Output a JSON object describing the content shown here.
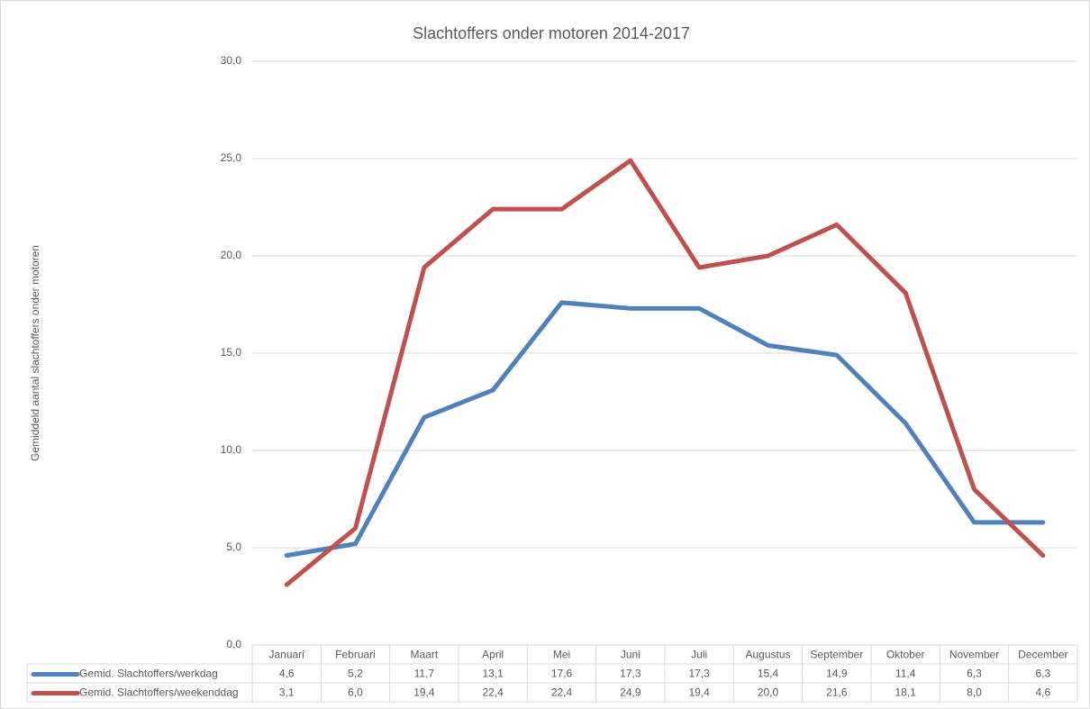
{
  "chart_data": {
    "type": "line",
    "title": "Slachtoffers onder motoren 2014-2017",
    "y_label": "Gemiddeld aantal slachtoffers onder motoren",
    "categories": [
      "Januari",
      "Februari",
      "Maart",
      "April",
      "Mei",
      "Juni",
      "Juli",
      "Augustus",
      "September",
      "Oktober",
      "November",
      "December"
    ],
    "series": [
      {
        "name": "Gemid. Slachtoffers/werkdag",
        "color": "#4f81bd",
        "values": [
          4.6,
          5.2,
          11.7,
          13.1,
          17.6,
          17.3,
          17.3,
          15.4,
          14.9,
          11.4,
          6.3,
          6.3
        ],
        "value_labels": [
          "4,6",
          "5,2",
          "11,7",
          "13,1",
          "17,6",
          "17,3",
          "17,3",
          "15,4",
          "14,9",
          "11,4",
          "6,3",
          "6,3"
        ]
      },
      {
        "name": "Gemid. Slachtoffers/weekenddag",
        "color": "#c0504d",
        "values": [
          3.1,
          6.0,
          19.4,
          22.4,
          22.4,
          24.9,
          19.4,
          20.0,
          21.6,
          18.1,
          8.0,
          4.6
        ],
        "value_labels": [
          "3,1",
          "6,0",
          "19,4",
          "22,4",
          "22,4",
          "24,9",
          "19,4",
          "20,0",
          "21,6",
          "18,1",
          "8,0",
          "4,6"
        ]
      }
    ],
    "ylim": [
      0,
      30
    ],
    "yticks": [
      {
        "value": 0,
        "label": "0,0"
      },
      {
        "value": 5,
        "label": "5,0"
      },
      {
        "value": 10,
        "label": "10,0"
      },
      {
        "value": 15,
        "label": "15,0"
      },
      {
        "value": 20,
        "label": "20,0"
      },
      {
        "value": 25,
        "label": "25,0"
      },
      {
        "value": 30,
        "label": "30,0"
      }
    ],
    "grid": true
  }
}
